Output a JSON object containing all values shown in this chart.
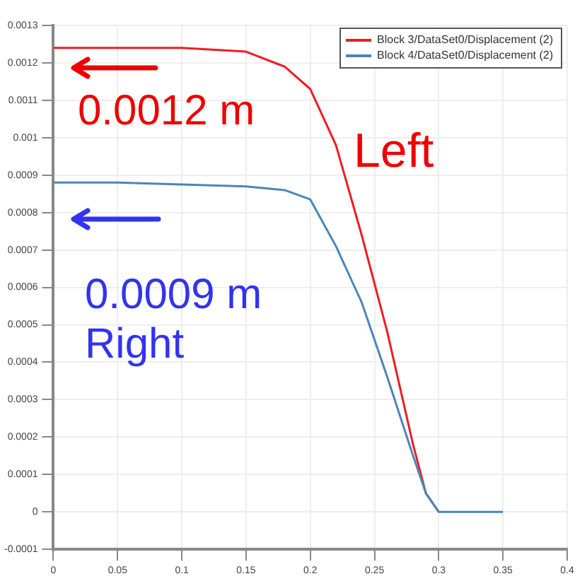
{
  "chart_data": {
    "type": "line",
    "x": [
      0,
      0.05,
      0.1,
      0.15,
      0.18,
      0.2,
      0.22,
      0.24,
      0.26,
      0.28,
      0.29,
      0.3,
      0.32,
      0.35
    ],
    "series": [
      {
        "name": "Block 3/DataSet0/Displacement (2)",
        "color": "#ee1c25",
        "values": [
          0.00124,
          0.00124,
          0.00124,
          0.00123,
          0.00119,
          0.00113,
          0.00098,
          0.00074,
          0.00048,
          0.00018,
          5e-05,
          0,
          null,
          null
        ]
      },
      {
        "name": "Block 4/DataSet0/Displacement (2)",
        "color": "#4a86b8",
        "values": [
          0.00088,
          0.00088,
          0.000875,
          0.00087,
          0.00086,
          0.000835,
          0.00071,
          0.00056,
          0.00036,
          0.00015,
          5e-05,
          0,
          0,
          0
        ]
      }
    ],
    "xlim": [
      0,
      0.4
    ],
    "xticks": [
      0,
      0.05,
      0.1,
      0.15,
      0.2,
      0.25,
      0.3,
      0.35,
      0.4
    ],
    "ylim": [
      -0.0001,
      0.0013
    ],
    "yticks": [
      -0.0001,
      0,
      0.0001,
      0.0002,
      0.0003,
      0.0004,
      0.0005,
      0.0006,
      0.0007,
      0.0008,
      0.0009,
      0.001,
      0.0011,
      0.0012,
      0.0013
    ],
    "grid": true,
    "legend": "top right",
    "marker": "none",
    "line_style": "solid",
    "annotations": [
      "0.0012 m",
      "Left",
      "0.0009 m",
      "Right"
    ]
  }
}
